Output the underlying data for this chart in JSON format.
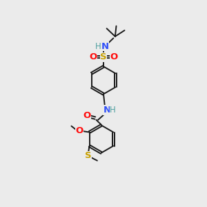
{
  "bg_color": "#ebebeb",
  "bond_color": "#1a1a1a",
  "colors": {
    "N": "#3050F8",
    "O": "#FF0D0D",
    "S": "#c8a000",
    "H": "#4fa0a0",
    "C": "#1a1a1a"
  }
}
